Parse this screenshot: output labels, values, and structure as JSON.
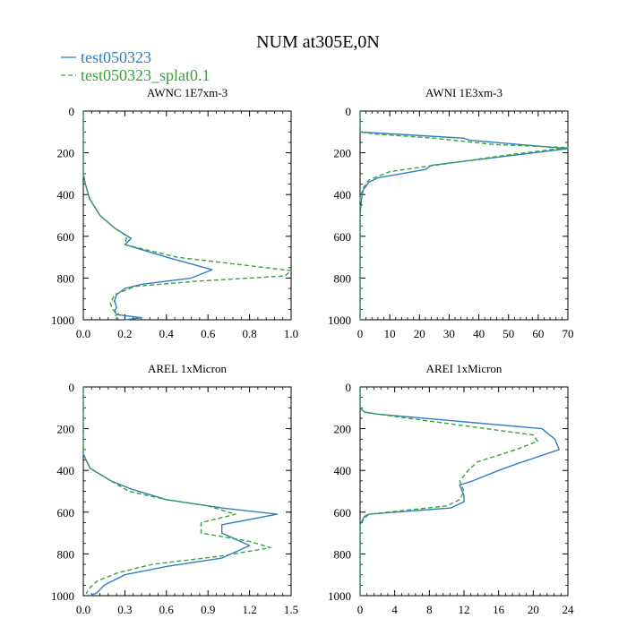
{
  "title": "NUM at305E,0N",
  "legend": [
    {
      "label": "test050323",
      "color": "#2f7fc1",
      "dash": "solid"
    },
    {
      "label": "test050323_splat0.1",
      "color": "#3aa03a",
      "dash": "dashed"
    }
  ],
  "chart_data": [
    {
      "type": "line",
      "title": "AWNC  1E7xm-3",
      "xlim": [
        0,
        1.0
      ],
      "ylim": [
        1000,
        0
      ],
      "xticks": [
        0,
        0.2,
        0.4,
        0.6,
        0.8,
        1.0
      ],
      "xtick_labels": [
        "0.0",
        "0.2",
        "0.4",
        "0.6",
        "0.8",
        "1.0"
      ],
      "yticks": [
        0,
        200,
        400,
        600,
        800,
        1000
      ],
      "ytick_labels": [
        "0",
        "200",
        "400",
        "600",
        "800",
        "1000"
      ],
      "series": [
        {
          "name": "test050323",
          "points": [
            [
              0,
              0
            ],
            [
              0,
              300
            ],
            [
              0.01,
              350
            ],
            [
              0.03,
              420
            ],
            [
              0.08,
              500
            ],
            [
              0.15,
              560
            ],
            [
              0.23,
              610
            ],
            [
              0.2,
              640
            ],
            [
              0.4,
              700
            ],
            [
              0.62,
              760
            ],
            [
              0.52,
              800
            ],
            [
              0.28,
              830
            ],
            [
              0.2,
              850
            ],
            [
              0.16,
              880
            ],
            [
              0.15,
              910
            ],
            [
              0.16,
              940
            ],
            [
              0.15,
              960
            ],
            [
              0.16,
              975
            ],
            [
              0.28,
              990
            ],
            [
              0.2,
              1000
            ]
          ]
        },
        {
          "name": "test050323_splat0.1",
          "points": [
            [
              0,
              0
            ],
            [
              0,
              300
            ],
            [
              0.01,
              350
            ],
            [
              0.03,
              420
            ],
            [
              0.08,
              500
            ],
            [
              0.15,
              560
            ],
            [
              0.21,
              600
            ],
            [
              0.2,
              640
            ],
            [
              0.45,
              700
            ],
            [
              1.0,
              765
            ],
            [
              0.97,
              790
            ],
            [
              0.55,
              815
            ],
            [
              0.25,
              840
            ],
            [
              0.15,
              880
            ],
            [
              0.13,
              920
            ],
            [
              0.14,
              950
            ],
            [
              0.17,
              970
            ],
            [
              0.15,
              985
            ],
            [
              0.17,
              995
            ]
          ]
        }
      ]
    },
    {
      "type": "line",
      "title": "AWNI  1E3xm-3",
      "xlim": [
        0,
        70
      ],
      "ylim": [
        1000,
        0
      ],
      "xticks": [
        0,
        10,
        20,
        30,
        40,
        50,
        60,
        70
      ],
      "xtick_labels": [
        "0",
        "10",
        "20",
        "30",
        "40",
        "50",
        "60",
        "70"
      ],
      "yticks": [
        0,
        200,
        400,
        600,
        800,
        1000
      ],
      "ytick_labels": [
        "0",
        "200",
        "400",
        "600",
        "800",
        "1000"
      ],
      "series": [
        {
          "name": "test050323",
          "points": [
            [
              0,
              0
            ],
            [
              0,
              100
            ],
            [
              35,
              130
            ],
            [
              37,
              140
            ],
            [
              70,
              180
            ],
            [
              24,
              260
            ],
            [
              22,
              280
            ],
            [
              6,
              320
            ],
            [
              3,
              340
            ],
            [
              1,
              380
            ],
            [
              0.5,
              420
            ],
            [
              0,
              500
            ],
            [
              0,
              1000
            ]
          ]
        },
        {
          "name": "test050323_splat0.1",
          "points": [
            [
              0,
              0
            ],
            [
              0,
              100
            ],
            [
              5,
              110
            ],
            [
              25,
              130
            ],
            [
              45,
              160
            ],
            [
              70,
              175
            ],
            [
              50,
              210
            ],
            [
              10,
              290
            ],
            [
              3,
              330
            ],
            [
              1,
              370
            ],
            [
              0,
              420
            ],
            [
              0,
              1000
            ]
          ]
        }
      ]
    },
    {
      "type": "line",
      "title": "AREL  1xMicron",
      "xlim": [
        0,
        1.5
      ],
      "ylim": [
        1000,
        0
      ],
      "xticks": [
        0,
        0.3,
        0.6,
        0.9,
        1.2,
        1.5
      ],
      "xtick_labels": [
        "0.0",
        "0.3",
        "0.6",
        "0.9",
        "1.2",
        "1.5"
      ],
      "yticks": [
        0,
        200,
        400,
        600,
        800,
        1000
      ],
      "ytick_labels": [
        "0",
        "200",
        "400",
        "600",
        "800",
        "1000"
      ],
      "series": [
        {
          "name": "test050323",
          "points": [
            [
              0,
              0
            ],
            [
              0,
              320
            ],
            [
              0.02,
              350
            ],
            [
              0.05,
              390
            ],
            [
              0.2,
              450
            ],
            [
              0.35,
              490
            ],
            [
              0.6,
              540
            ],
            [
              1.0,
              580
            ],
            [
              1.4,
              610
            ],
            [
              1.0,
              660
            ],
            [
              1.0,
              700
            ],
            [
              1.2,
              760
            ],
            [
              1.0,
              820
            ],
            [
              0.6,
              860
            ],
            [
              0.3,
              900
            ],
            [
              0.15,
              950
            ],
            [
              0.1,
              985
            ],
            [
              0.05,
              1000
            ]
          ]
        },
        {
          "name": "test050323_splat0.1",
          "points": [
            [
              0,
              0
            ],
            [
              0,
              320
            ],
            [
              0.02,
              350
            ],
            [
              0.05,
              390
            ],
            [
              0.2,
              450
            ],
            [
              0.33,
              500
            ],
            [
              0.6,
              540
            ],
            [
              0.9,
              570
            ],
            [
              1.1,
              610
            ],
            [
              0.85,
              650
            ],
            [
              0.85,
              700
            ],
            [
              1.2,
              740
            ],
            [
              1.35,
              770
            ],
            [
              1.0,
              810
            ],
            [
              0.5,
              850
            ],
            [
              0.25,
              890
            ],
            [
              0.1,
              930
            ],
            [
              0.05,
              960
            ],
            [
              0.02,
              990
            ]
          ]
        }
      ]
    },
    {
      "type": "line",
      "title": "AREI  1xMicron",
      "xlim": [
        0,
        24
      ],
      "ylim": [
        1000,
        0
      ],
      "xticks": [
        0,
        4,
        8,
        12,
        16,
        20,
        24
      ],
      "xtick_labels": [
        "0",
        "4",
        "8",
        "12",
        "16",
        "20",
        "24"
      ],
      "yticks": [
        0,
        200,
        400,
        600,
        800,
        1000
      ],
      "ytick_labels": [
        "0",
        "200",
        "400",
        "600",
        "800",
        "1000"
      ],
      "series": [
        {
          "name": "test050323",
          "points": [
            [
              0,
              0
            ],
            [
              0,
              100
            ],
            [
              0.5,
              120
            ],
            [
              2,
              130
            ],
            [
              21,
              200
            ],
            [
              22.5,
              250
            ],
            [
              23,
              300
            ],
            [
              18,
              370
            ],
            [
              16,
              400
            ],
            [
              13,
              450
            ],
            [
              11.5,
              470
            ],
            [
              12,
              520
            ],
            [
              12,
              550
            ],
            [
              10.5,
              580
            ],
            [
              1,
              610
            ],
            [
              0.5,
              620
            ],
            [
              0,
              660
            ],
            [
              0,
              1000
            ]
          ]
        },
        {
          "name": "test050323_splat0.1",
          "points": [
            [
              0,
              0
            ],
            [
              0,
              100
            ],
            [
              0.5,
              120
            ],
            [
              2,
              130
            ],
            [
              20,
              230
            ],
            [
              20.5,
              260
            ],
            [
              18,
              300
            ],
            [
              13.5,
              360
            ],
            [
              12.5,
              400
            ],
            [
              11.5,
              450
            ],
            [
              12,
              500
            ],
            [
              11.5,
              540
            ],
            [
              10,
              570
            ],
            [
              1,
              610
            ],
            [
              0.5,
              630
            ],
            [
              0,
              660
            ],
            [
              0,
              1000
            ]
          ]
        }
      ]
    }
  ]
}
